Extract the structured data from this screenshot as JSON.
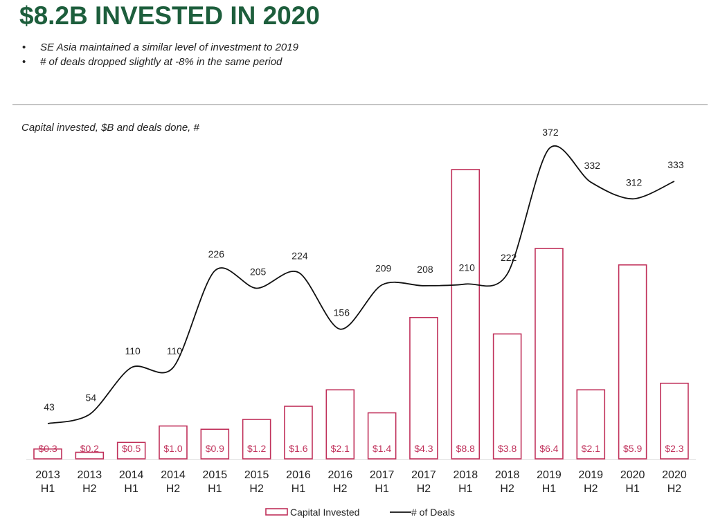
{
  "header": {
    "title": "$8.2B INVESTED IN 2020",
    "bullets": [
      "SE Asia maintained a similar level of investment to 2019",
      "# of deals dropped slightly at -8% in the same period"
    ]
  },
  "colors": {
    "title": "#1d5e3c",
    "bars": "#c0305a",
    "line": "#111111"
  },
  "chart_data": {
    "type": "bar+line",
    "title": "Capital invested, $B and deals done, #",
    "categories": [
      [
        "2013",
        "H1"
      ],
      [
        "2013",
        "H2"
      ],
      [
        "2014",
        "H1"
      ],
      [
        "2014",
        "H2"
      ],
      [
        "2015",
        "H1"
      ],
      [
        "2015",
        "H2"
      ],
      [
        "2016",
        "H1"
      ],
      [
        "2016",
        "H2"
      ],
      [
        "2017",
        "H1"
      ],
      [
        "2017",
        "H2"
      ],
      [
        "2018",
        "H1"
      ],
      [
        "2018",
        "H2"
      ],
      [
        "2019",
        "H1"
      ],
      [
        "2019",
        "H2"
      ],
      [
        "2020",
        "H1"
      ],
      [
        "2020",
        "H2"
      ]
    ],
    "series": [
      {
        "name": "Capital Invested",
        "type": "bar",
        "values": [
          0.3,
          0.2,
          0.5,
          1.0,
          0.9,
          1.2,
          1.6,
          2.1,
          1.4,
          4.3,
          8.8,
          3.8,
          6.4,
          2.1,
          5.9,
          2.3
        ],
        "labels": [
          "$0.3",
          "$0.2",
          "$0.5",
          "$1.0",
          "$0.9",
          "$1.2",
          "$1.6",
          "$2.1",
          "$1.4",
          "$4.3",
          "$8.8",
          "$3.8",
          "$6.4",
          "$2.1",
          "$5.9",
          "$2.3"
        ]
      },
      {
        "name": "# of Deals",
        "type": "line",
        "values": [
          43,
          54,
          110,
          110,
          226,
          205,
          224,
          156,
          209,
          208,
          210,
          222,
          372,
          332,
          312,
          333
        ]
      }
    ],
    "legend": "bottom-center",
    "grid": false
  }
}
